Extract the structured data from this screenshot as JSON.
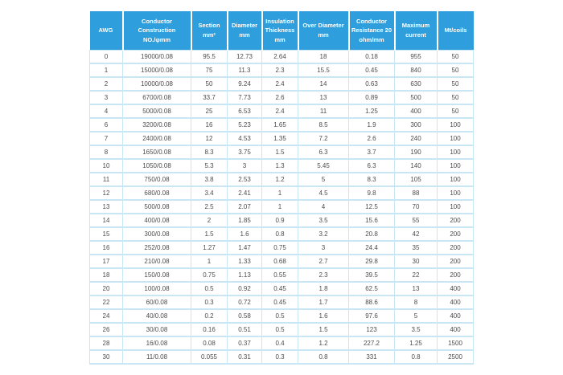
{
  "page": {
    "background_color": "#ffffff",
    "header_bg_color": "#2e9edc",
    "header_text_color": "#ffffff",
    "grid_color": "#c9e6f4",
    "body_text_color": "#4d4d4d"
  },
  "chart_data": {
    "type": "table",
    "title": "AWG wire specification table",
    "columns": [
      "AWG",
      "Conductor\nConstruction\nNO./φmm",
      "Section\nmm²",
      "Diameter\nmm",
      "Insulation\nThickness\nmm",
      "Over Diameter\nmm",
      "Conductor\nResistance 20\nohm/mm",
      "Maximum\ncurrent",
      "Mt/coils"
    ],
    "rows": [
      [
        "0",
        "19000/0.08",
        "95.5",
        "12.73",
        "2.64",
        "18",
        "0.18",
        "955",
        "50"
      ],
      [
        "1",
        "15000/0.08",
        "75",
        "11.3",
        "2.3",
        "15.5",
        "0.45",
        "840",
        "50"
      ],
      [
        "2",
        "10000/0.08",
        "50",
        "9.24",
        "2.4",
        "14",
        "0.63",
        "630",
        "50"
      ],
      [
        "3",
        "6700/0.08",
        "33.7",
        "7.73",
        "2.6",
        "13",
        "0.89",
        "500",
        "50"
      ],
      [
        "4",
        "5000/0.08",
        "25",
        "6.53",
        "2.4",
        "11",
        "1.25",
        "400",
        "50"
      ],
      [
        "6",
        "3200/0.08",
        "16",
        "5.23",
        "1.65",
        "8.5",
        "1.9",
        "300",
        "100"
      ],
      [
        "7",
        "2400/0.08",
        "12",
        "4.53",
        "1.35",
        "7.2",
        "2.6",
        "240",
        "100"
      ],
      [
        "8",
        "1650/0.08",
        "8.3",
        "3.75",
        "1.5",
        "6.3",
        "3.7",
        "190",
        "100"
      ],
      [
        "10",
        "1050/0.08",
        "5.3",
        "3",
        "1.3",
        "5.45",
        "6.3",
        "140",
        "100"
      ],
      [
        "11",
        "750/0.08",
        "3.8",
        "2.53",
        "1.2",
        "5",
        "8.3",
        "105",
        "100"
      ],
      [
        "12",
        "680/0.08",
        "3.4",
        "2.41",
        "1",
        "4.5",
        "9.8",
        "88",
        "100"
      ],
      [
        "13",
        "500/0.08",
        "2.5",
        "2.07",
        "1",
        "4",
        "12.5",
        "70",
        "100"
      ],
      [
        "14",
        "400/0.08",
        "2",
        "1.85",
        "0.9",
        "3.5",
        "15.6",
        "55",
        "200"
      ],
      [
        "15",
        "300/0.08",
        "1.5",
        "1.6",
        "0.8",
        "3.2",
        "20.8",
        "42",
        "200"
      ],
      [
        "16",
        "252/0.08",
        "1.27",
        "1.47",
        "0.75",
        "3",
        "24.4",
        "35",
        "200"
      ],
      [
        "17",
        "210/0.08",
        "1",
        "1.33",
        "0.68",
        "2.7",
        "29.8",
        "30",
        "200"
      ],
      [
        "18",
        "150/0.08",
        "0.75",
        "1.13",
        "0.55",
        "2.3",
        "39.5",
        "22",
        "200"
      ],
      [
        "20",
        "100/0.08",
        "0.5",
        "0.92",
        "0.45",
        "1.8",
        "62.5",
        "13",
        "400"
      ],
      [
        "22",
        "60/0.08",
        "0.3",
        "0.72",
        "0.45",
        "1.7",
        "88.6",
        "8",
        "400"
      ],
      [
        "24",
        "40/0.08",
        "0.2",
        "0.58",
        "0.5",
        "1.6",
        "97.6",
        "5",
        "400"
      ],
      [
        "26",
        "30/0.08",
        "0.16",
        "0.51",
        "0.5",
        "1.5",
        "123",
        "3.5",
        "400"
      ],
      [
        "28",
        "16/0.08",
        "0.08",
        "0.37",
        "0.4",
        "1.2",
        "227.2",
        "1.25",
        "1500"
      ],
      [
        "30",
        "11/0.08",
        "0.055",
        "0.31",
        "0.3",
        "0.8",
        "331",
        "0.8",
        "2500"
      ]
    ]
  }
}
